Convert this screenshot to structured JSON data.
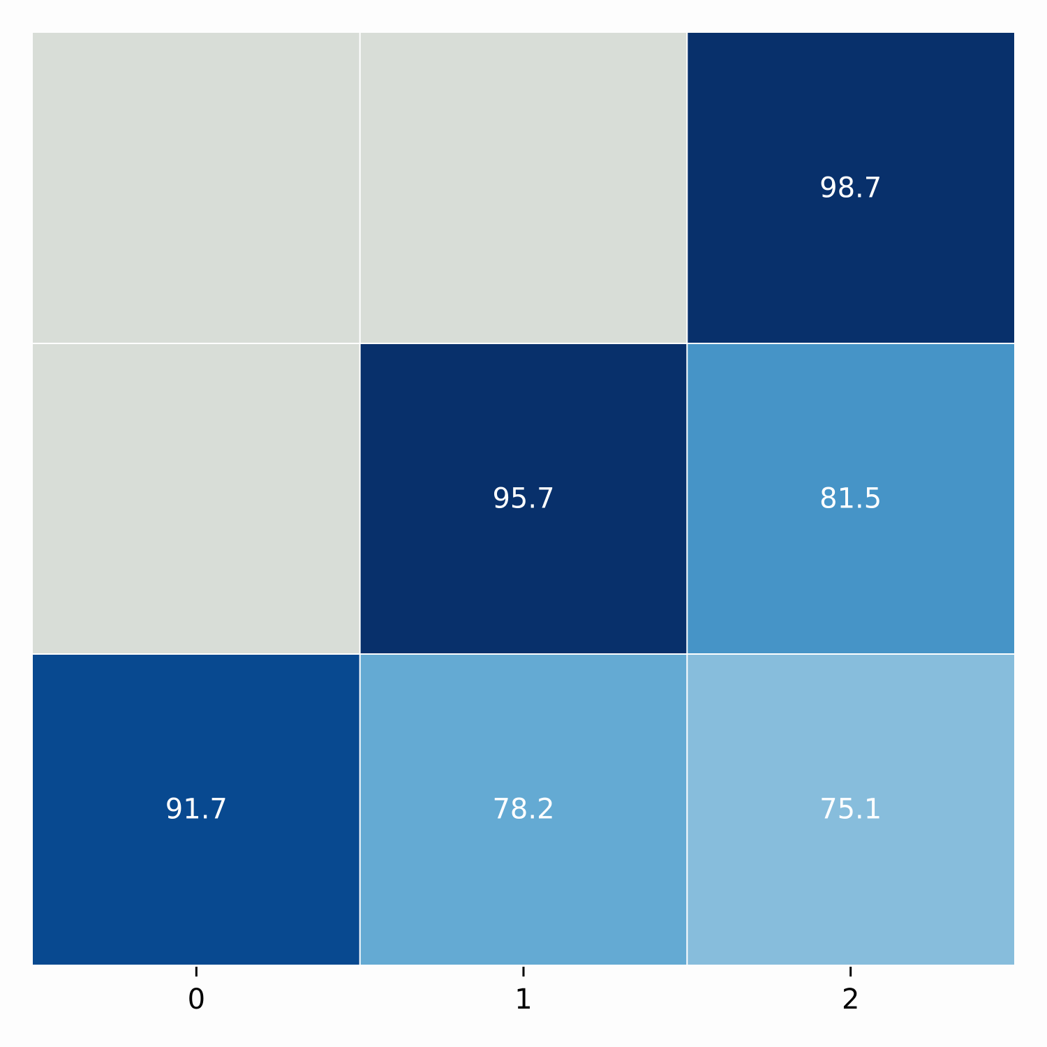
{
  "chart_data": {
    "type": "heatmap",
    "title": "",
    "xlabel": "",
    "ylabel": "",
    "x_categories": [
      "0",
      "1",
      "2"
    ],
    "y_categories": [],
    "grid": false,
    "legend": "none",
    "colormap": "Blues",
    "value_range": [
      60,
      95
    ],
    "values": [
      [
        null,
        null,
        98.7
      ],
      [
        null,
        95.7,
        81.5
      ],
      [
        91.7,
        78.2,
        75.1
      ]
    ],
    "missing_color": "#d8ddd7",
    "cell_text_color": "#ffffff",
    "gap_color": "#ffffff"
  }
}
